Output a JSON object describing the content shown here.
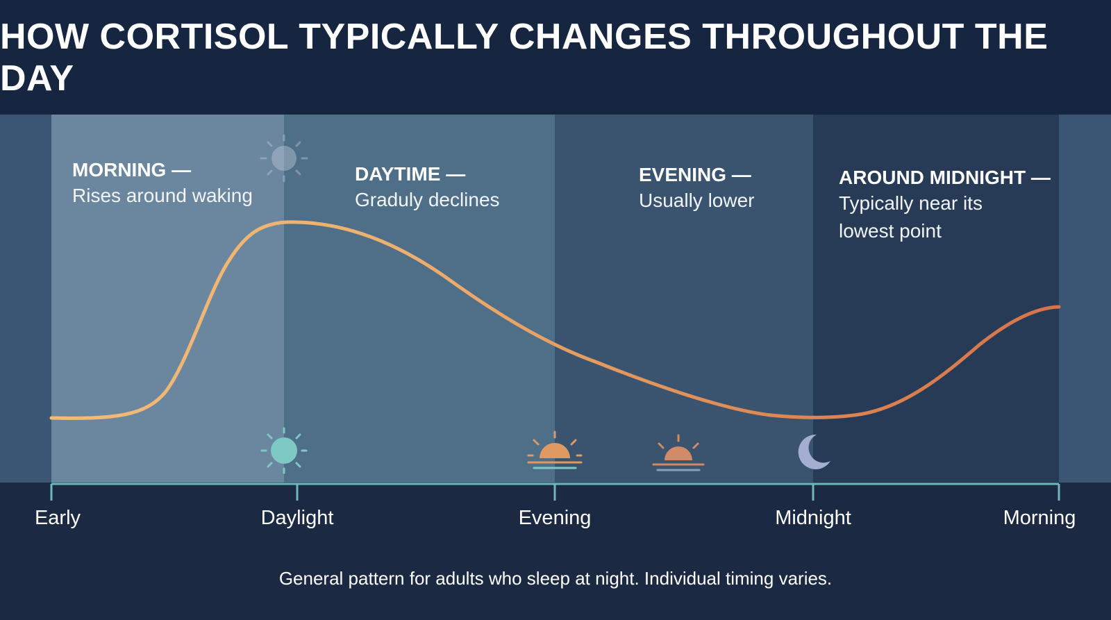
{
  "title": "HOW CORTISOL TYPICALLY CHANGES THROUGHOUT THE DAY",
  "phases": [
    {
      "title": "MORNING —",
      "desc": [
        "Rises around waking"
      ]
    },
    {
      "title": "DAYTIME —",
      "desc": [
        "Graduly declines"
      ]
    },
    {
      "title": "EVENING —",
      "desc": [
        "Usually lower"
      ]
    },
    {
      "title": "AROUND MIDNIGHT —",
      "desc": [
        "Typically near its",
        "lowest point"
      ]
    }
  ],
  "timeline_labels": [
    "Early",
    "Daylight",
    "Evening",
    "Midnight",
    "Morning"
  ],
  "footnote": "General pattern for adults who sleep at night. Individual timing varies.",
  "icons": [
    "sun-faded-icon",
    "sun-icon",
    "sunset-icon",
    "sunset-icon",
    "moon-icon"
  ],
  "colors": {
    "background": "#1b2942",
    "curve_start": "#f0b574",
    "curve_end": "#d9764a",
    "axis": "#6fb7b8",
    "morning_band": "#6b869f",
    "daytime_band": "#4f6e88",
    "evening_band": "#3a546f",
    "midnight_band": "#273a56"
  }
}
